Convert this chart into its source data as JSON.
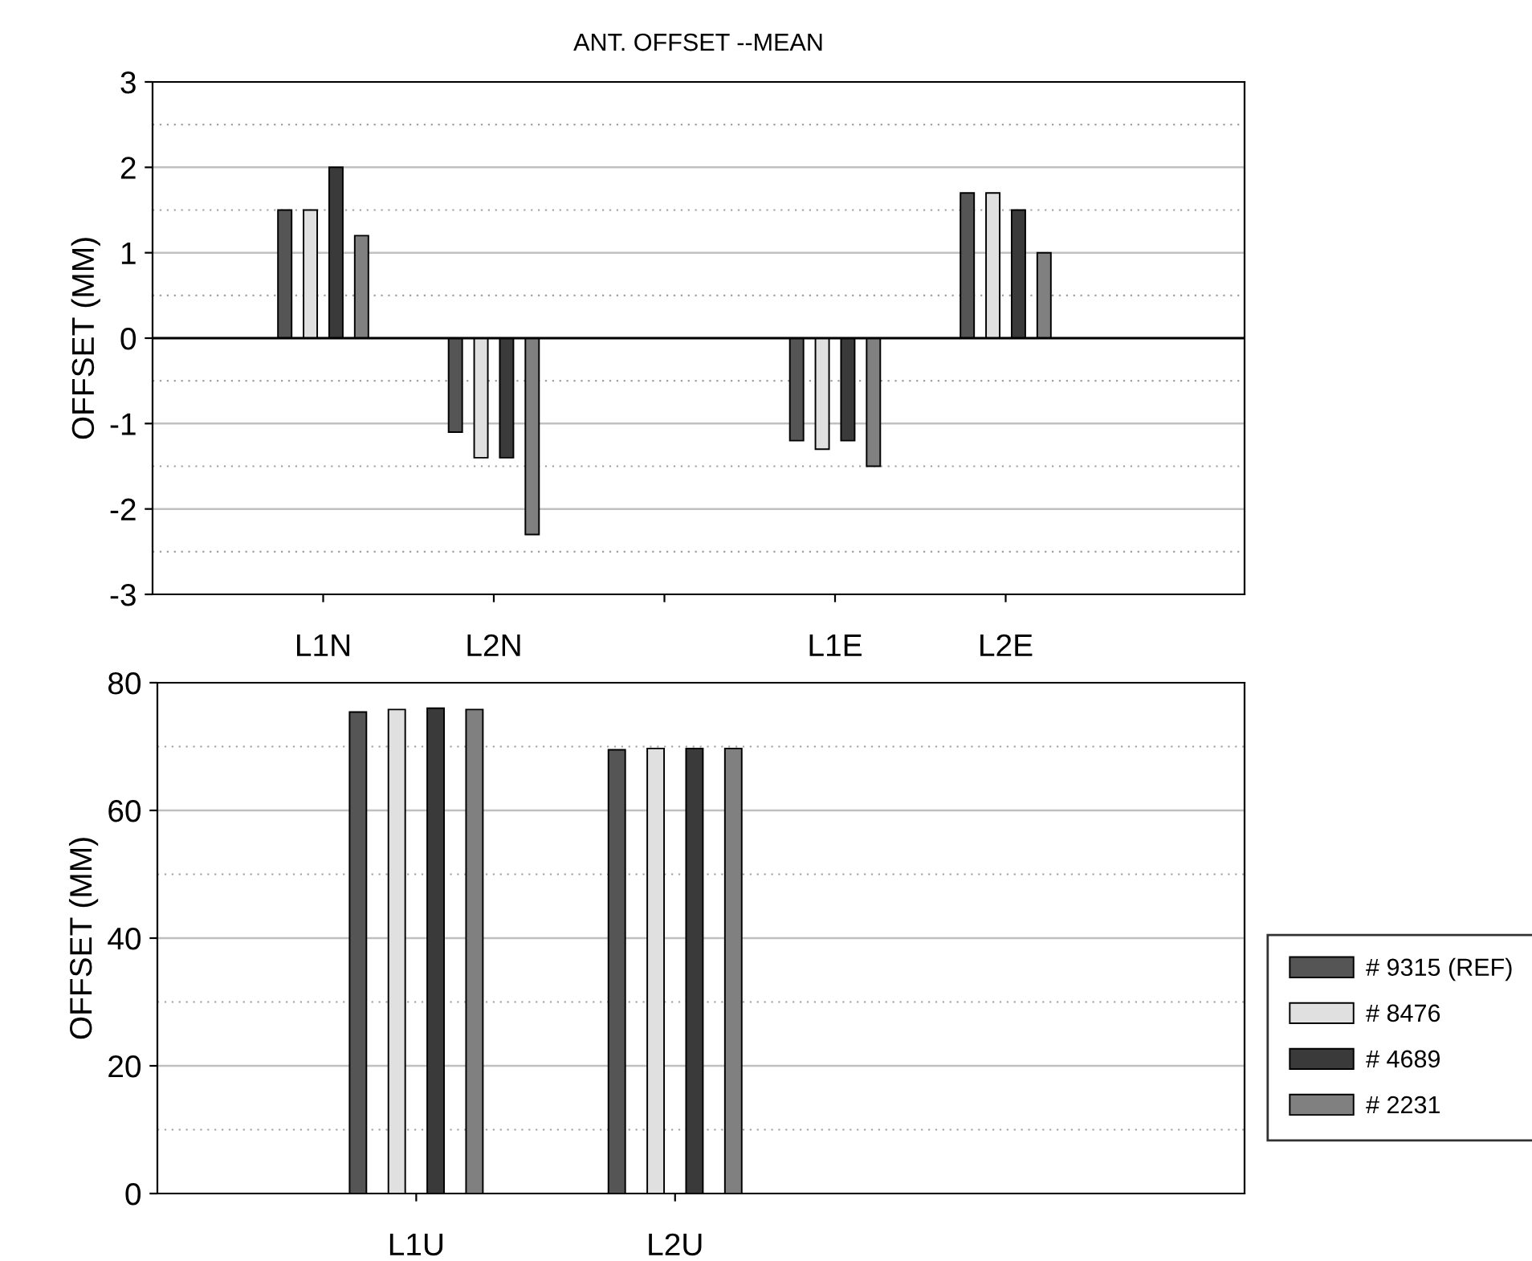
{
  "chart_data": [
    {
      "type": "bar",
      "title": "ANT. OFFSET --MEAN",
      "ylabel": "OFFSET (MM)",
      "categories": [
        "L1N",
        "L2N",
        null,
        "L1E",
        "L2E"
      ],
      "ylim": [
        -3,
        3
      ],
      "yticks": [
        -3,
        -2,
        -1,
        0,
        1,
        2,
        3
      ],
      "grid": "y",
      "legend": false,
      "series": [
        {
          "color": "#555555",
          "values": [
            1.5,
            -1.1,
            null,
            -1.2,
            1.7
          ]
        },
        {
          "color": "#e0e0e0",
          "values": [
            1.5,
            -1.4,
            null,
            -1.3,
            1.7
          ]
        },
        {
          "color": "#3a3a3a",
          "values": [
            2.0,
            -1.4,
            null,
            -1.2,
            1.5
          ]
        },
        {
          "color": "#808080",
          "values": [
            1.2,
            -2.3,
            null,
            -1.5,
            1.0
          ]
        }
      ]
    },
    {
      "type": "bar",
      "ylabel": "OFFSET (MM)",
      "categories": [
        "L1U",
        "L2U"
      ],
      "ylim": [
        0,
        80
      ],
      "yticks": [
        0,
        20,
        40,
        60,
        80
      ],
      "grid": "y",
      "legend": "right",
      "series": [
        {
          "name": "# 9315 (REF)",
          "color": "#555555",
          "values": [
            75.4,
            69.5
          ]
        },
        {
          "name": "# 8476",
          "color": "#e0e0e0",
          "values": [
            75.8,
            69.7
          ]
        },
        {
          "name": "# 4689",
          "color": "#3a3a3a",
          "values": [
            76.0,
            69.7
          ]
        },
        {
          "name": "# 2231",
          "color": "#808080",
          "values": [
            75.8,
            69.7
          ]
        }
      ]
    }
  ]
}
